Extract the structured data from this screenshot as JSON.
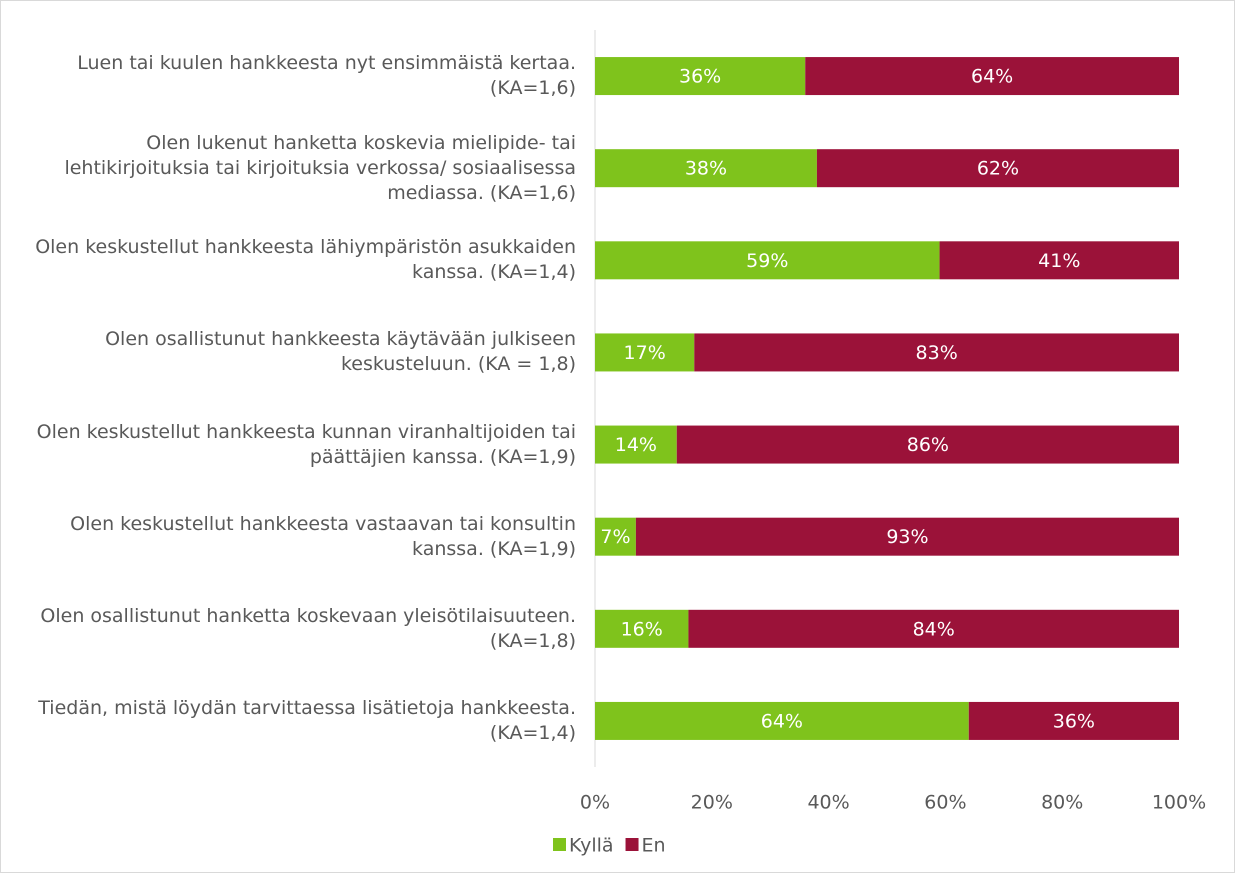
{
  "chart_data": {
    "type": "stacked_bar_horizontal",
    "categories": [
      "Luen tai kuulen hankkeesta nyt ensimmäistä kertaa. (KA=1,6)",
      "Olen lukenut hanketta koskevia mielipide- tai lehtikirjoituksia tai kirjoituksia verkossa/ sosiaalisessa mediassa. (KA=1,6)",
      "Olen keskustellut hankkeesta lähiympäristön asukkaiden kanssa. (KA=1,4)",
      "Olen osallistunut hankkeesta käytävään julkiseen keskusteluun. (KA = 1,8)",
      "Olen keskustellut hankkeesta kunnan viranhaltijoiden tai päättäjien kanssa. (KA=1,9)",
      "Olen keskustellut hankkeesta vastaavan tai konsultin kanssa. (KA=1,9)",
      "Olen osallistunut hanketta koskevaan yleisötilaisuuteen. (KA=1,8)",
      "Tiedän, mistä löydän tarvittaessa lisätietoja hankkeesta. (KA=1,4)"
    ],
    "series": [
      {
        "name": "Kyllä",
        "color": "#7fc31c",
        "values": [
          36,
          38,
          59,
          17,
          14,
          7,
          16,
          64
        ],
        "value_labels": [
          "36%",
          "38%",
          "59%",
          "17%",
          "14%",
          "7%",
          "16%",
          "64%"
        ]
      },
      {
        "name": "En",
        "color": "#9b1239",
        "values": [
          64,
          62,
          41,
          83,
          86,
          93,
          84,
          36
        ],
        "value_labels": [
          "64%",
          "62%",
          "41%",
          "83%",
          "86%",
          "93%",
          "84%",
          "36%"
        ]
      }
    ],
    "xlim": [
      0,
      100
    ],
    "xticks": [
      {
        "value": 0,
        "label": "0%"
      },
      {
        "value": 20,
        "label": "20%"
      },
      {
        "value": 40,
        "label": "40%"
      },
      {
        "value": 60,
        "label": "60%"
      },
      {
        "value": 80,
        "label": "80%"
      },
      {
        "value": 100,
        "label": "100%"
      }
    ],
    "legend": "bottom"
  }
}
